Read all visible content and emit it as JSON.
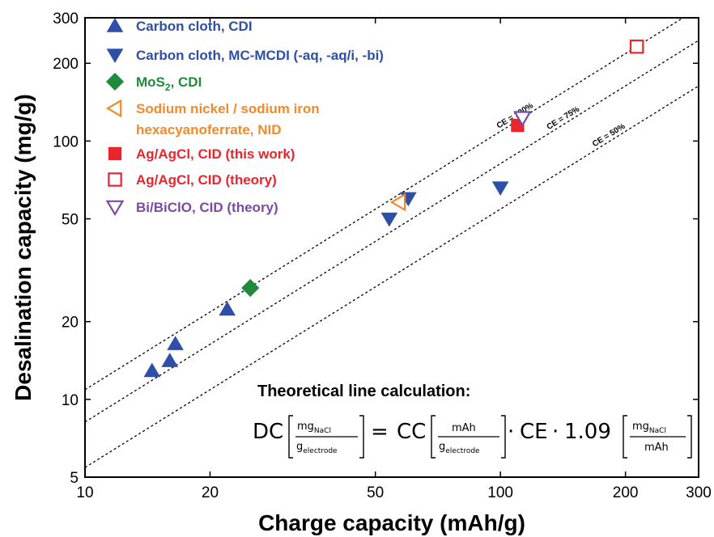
{
  "chart_data": {
    "type": "scatter",
    "title": "",
    "xlabel": "Charge capacity (mAh/g)",
    "ylabel": "Desalination capacity (mg/g)",
    "xscale": "log",
    "yscale": "log",
    "xlim": [
      10,
      300
    ],
    "ylim": [
      5,
      300
    ],
    "xticks": [
      10,
      20,
      50,
      100,
      200,
      300
    ],
    "yticks": [
      5,
      10,
      20,
      50,
      100,
      200,
      300
    ],
    "legend_position": "top-left",
    "series": [
      {
        "name": "Carbon cloth, CDI",
        "marker": "triangle-up",
        "filled": true,
        "color": "#2e4fa8",
        "points": [
          [
            14.5,
            12.9
          ],
          [
            16,
            14.1
          ],
          [
            16.5,
            16.4
          ],
          [
            22,
            22.3
          ]
        ]
      },
      {
        "name": "Carbon cloth, MC-MCDI (-aq, -aq/i, -bi)",
        "marker": "triangle-down",
        "filled": true,
        "color": "#2e4fa8",
        "points": [
          [
            54,
            50
          ],
          [
            60,
            60
          ],
          [
            100,
            66
          ]
        ]
      },
      {
        "name": "MoS2, CDI",
        "name_parts": [
          "MoS",
          "2",
          ", CDI"
        ],
        "marker": "diamond",
        "filled": true,
        "color": "#1f8a3a",
        "points": [
          [
            25,
            27
          ]
        ]
      },
      {
        "name": "Sodium nickel / sodium iron hexacyanoferrate, NID",
        "lines": [
          "Sodium nickel / sodium iron",
          "hexacyanoferrate, NID"
        ],
        "marker": "triangle-left",
        "filled": false,
        "color": "#f08a2a",
        "points": [
          [
            57,
            58
          ]
        ]
      },
      {
        "name": "Ag/AgCl, CID (this work)",
        "marker": "square",
        "filled": true,
        "color": "#e8262b",
        "points": [
          [
            110,
            115
          ]
        ]
      },
      {
        "name": "Ag/AgCl, CID (theory)",
        "marker": "square",
        "filled": false,
        "color": "#e8262b",
        "points": [
          [
            213,
            232
          ]
        ]
      },
      {
        "name": "Bi/BiClO, CID (theory)",
        "marker": "triangle-down",
        "filled": false,
        "color": "#7a4aa8",
        "points": [
          [
            113,
            123
          ]
        ]
      }
    ],
    "reference_lines": [
      {
        "label": "CE = 100%",
        "slope": 1.09,
        "label_x": 100
      },
      {
        "label": "CE = 75%",
        "slope": 0.8175,
        "label_x": 132
      },
      {
        "label": "CE = 50%",
        "slope": 0.545,
        "label_x": 170
      }
    ],
    "annotation": {
      "title": "Theoretical line calculation:",
      "dc": "DC",
      "cc": "CC",
      "ce": "CE",
      "eq": "=",
      "dot": "·",
      "factor": "1.09",
      "u1_num": "mg",
      "u1_num_sub": "NaCl",
      "u1_den": "g",
      "u1_den_sub": "electrode",
      "u2_num": "mAh",
      "u2_den": "g",
      "u2_den_sub": "electrode",
      "u3_num": "mg",
      "u3_num_sub": "NaCl",
      "u3_den": "mAh"
    }
  }
}
